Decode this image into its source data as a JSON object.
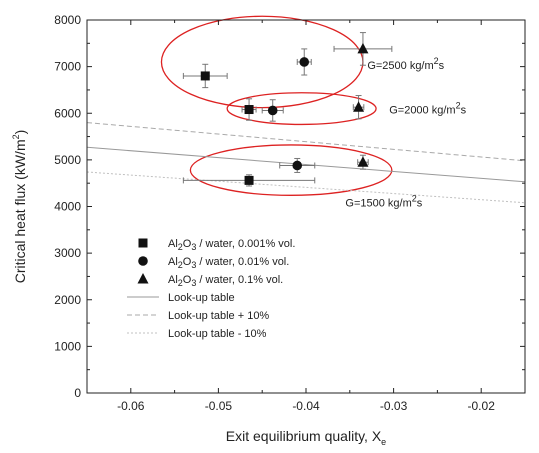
{
  "chart_data": {
    "type": "scatter",
    "xlabel": {
      "text": "Exit equilibrium quality, X",
      "sub": "e"
    },
    "ylabel": {
      "text": "Critical heat flux (kW/m",
      "sup": "2",
      "end": ")"
    },
    "xlim": [
      -0.065,
      -0.015
    ],
    "ylim": [
      0,
      8000
    ],
    "x_ticks": [
      -0.06,
      -0.05,
      -0.04,
      -0.03,
      -0.02
    ],
    "x_tick_labels": [
      "-0.06",
      "-0.05",
      "-0.04",
      "-0.03",
      "-0.02"
    ],
    "y_ticks": [
      0,
      1000,
      2000,
      3000,
      4000,
      5000,
      6000,
      7000,
      8000
    ],
    "y_tick_labels": [
      "0",
      "1000",
      "2000",
      "3000",
      "4000",
      "5000",
      "6000",
      "7000",
      "8000"
    ],
    "grid": false,
    "legend_position": "lower-left",
    "series": [
      {
        "name": {
          "a": "Al",
          "s1": "2",
          "b": "O",
          "s2": "3",
          "c": "/ water, 0.001% vol."
        },
        "marker": "square",
        "points": [
          {
            "x": -0.0515,
            "y": 6800,
            "xerr": 0.0025,
            "yerr": 250
          },
          {
            "x": -0.0465,
            "y": 6080,
            "xerr": 0.0008,
            "yerr": 230
          },
          {
            "x": -0.0465,
            "y": 4560,
            "xerr": [
              0.0075,
              0.0075
            ],
            "yerr": 120
          }
        ]
      },
      {
        "name": {
          "a": "Al",
          "s1": "2",
          "b": "O",
          "s2": "3",
          "c": "/ water, 0.01% vol."
        },
        "marker": "circle",
        "points": [
          {
            "x": -0.0402,
            "y": 7100,
            "xerr": 0.0008,
            "yerr": 280
          },
          {
            "x": -0.0438,
            "y": 6060,
            "xerr": 0.0012,
            "yerr": 230
          },
          {
            "x": -0.041,
            "y": 4880,
            "xerr": 0.002,
            "yerr": 150
          }
        ]
      },
      {
        "name": {
          "a": "Al",
          "s1": "2",
          "b": "O",
          "s2": "3",
          "c": "/ water, 0.1% vol."
        },
        "marker": "triangle",
        "points": [
          {
            "x": -0.0335,
            "y": 7380,
            "xerr": 0.0033,
            "yerr": 350
          },
          {
            "x": -0.034,
            "y": 6130,
            "xerr": 0.0006,
            "yerr": 250
          },
          {
            "x": -0.0335,
            "y": 4950,
            "xerr": 0.0006,
            "yerr": 150
          }
        ]
      }
    ],
    "lines": [
      {
        "name": "Look-up table",
        "style": "solid",
        "color": "#999999",
        "x": [
          -0.065,
          -0.015
        ],
        "y": [
          5270,
          4530
        ]
      },
      {
        "name": "Look-up table + 10%",
        "style": "dash",
        "color": "#a9a9a9",
        "x": [
          -0.065,
          -0.015
        ],
        "y": [
          5800,
          4980
        ]
      },
      {
        "name": "Look-up table  - 10%",
        "style": "dot",
        "color": "#c0c0c0",
        "x": [
          -0.065,
          -0.015
        ],
        "y": [
          4740,
          4080
        ]
      }
    ],
    "ellipses": [
      {
        "cx": -0.045,
        "cy": 7100,
        "rx": 0.0115,
        "ry": 980,
        "color": "#dd2222"
      },
      {
        "cx": -0.0405,
        "cy": 6100,
        "rx": 0.0085,
        "ry": 340,
        "color": "#dd2222"
      },
      {
        "cx": -0.0417,
        "cy": 4780,
        "rx": 0.0115,
        "ry": 540,
        "color": "#dd2222"
      }
    ],
    "annotations": [
      {
        "x": -0.033,
        "y": 6950,
        "text": "G=2500 kg/m",
        "sup": "2",
        "end": "s"
      },
      {
        "x": -0.0305,
        "y": 6000,
        "text": "G=2000 kg/m",
        "sup": "2",
        "end": "s"
      },
      {
        "x": -0.0355,
        "y": 4000,
        "text": "G=1500 kg/m",
        "sup": "2",
        "end": "s"
      }
    ]
  }
}
